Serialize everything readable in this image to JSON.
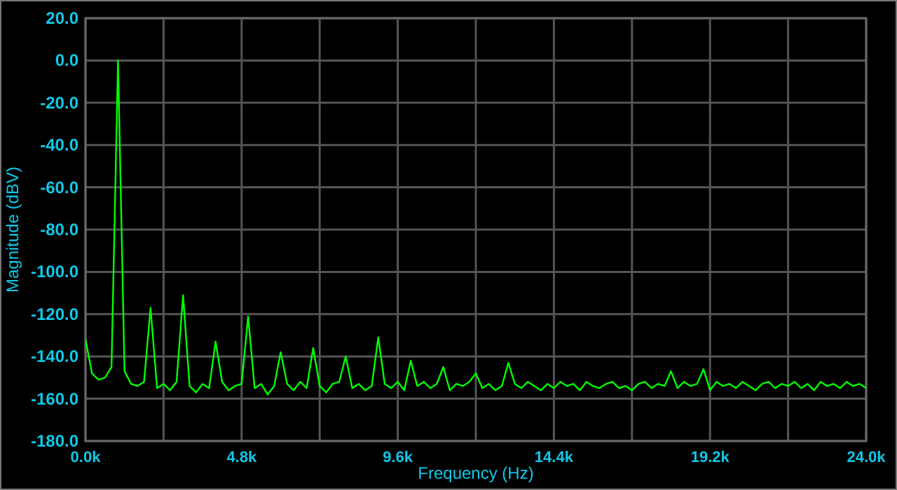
{
  "chart_data": {
    "type": "line",
    "xlabel": "Frequency (Hz)",
    "ylabel": "Magnitude (dBV)",
    "x": [
      0,
      200,
      400,
      600,
      800,
      1000,
      1200,
      1400,
      1600,
      1800,
      2000,
      2200,
      2400,
      2600,
      2800,
      3000,
      3200,
      3400,
      3600,
      3800,
      4000,
      4200,
      4400,
      4600,
      4800,
      5000,
      5200,
      5400,
      5600,
      5800,
      6000,
      6200,
      6400,
      6600,
      6800,
      7000,
      7200,
      7400,
      7600,
      7800,
      8000,
      8200,
      8400,
      8600,
      8800,
      9000,
      9200,
      9400,
      9600,
      9800,
      10000,
      10200,
      10400,
      10600,
      10800,
      11000,
      11200,
      11400,
      11600,
      11800,
      12000,
      12200,
      12400,
      12600,
      12800,
      13000,
      13200,
      13400,
      13600,
      13800,
      14000,
      14200,
      14400,
      14600,
      14800,
      15000,
      15200,
      15400,
      15600,
      15800,
      16000,
      16200,
      16400,
      16600,
      16800,
      17000,
      17200,
      17400,
      17600,
      17800,
      18000,
      18200,
      18400,
      18600,
      18800,
      19000,
      19200,
      19400,
      19600,
      19800,
      20000,
      20200,
      20400,
      20600,
      20800,
      21000,
      21200,
      21400,
      21600,
      21800,
      22000,
      22200,
      22400,
      22600,
      22800,
      23000,
      23200,
      23400,
      23600,
      23800,
      24000
    ],
    "series": [
      {
        "color": "#00ff00",
        "values": [
          -132,
          -148,
          -151,
          -150,
          -145,
          0,
          -147,
          -153,
          -154,
          -152,
          -117,
          -155,
          -153,
          -156,
          -152,
          -111,
          -154,
          -157,
          -153,
          -155,
          -133,
          -152,
          -156,
          -154,
          -153,
          -121,
          -155,
          -153,
          -158,
          -154,
          -138,
          -153,
          -156,
          -152,
          -155,
          -136,
          -154,
          -157,
          -153,
          -152,
          -140,
          -155,
          -153,
          -156,
          -154,
          -131,
          -153,
          -155,
          -152,
          -156,
          -142,
          -154,
          -152,
          -155,
          -153,
          -145,
          -156,
          -153,
          -154,
          -152,
          -148,
          -155,
          -153,
          -156,
          -154,
          -143,
          -153,
          -155,
          -152,
          -154,
          -156,
          -153,
          -155,
          -152,
          -154,
          -153,
          -156,
          -152,
          -154,
          -155,
          -153,
          -152,
          -155,
          -154,
          -156,
          -153,
          -152,
          -155,
          -153,
          -154,
          -147,
          -155,
          -152,
          -154,
          -153,
          -146,
          -156,
          -152,
          -154,
          -153,
          -155,
          -152,
          -154,
          -156,
          -153,
          -152,
          -155,
          -153,
          -154,
          -152,
          -155,
          -153,
          -156,
          -152,
          -154,
          -153,
          -155,
          -152,
          -154,
          -153,
          -155
        ]
      }
    ],
    "xlim": [
      0,
      24000
    ],
    "xticks": [
      {
        "value": 0,
        "label": "0.0k"
      },
      {
        "value": 2400,
        "label": null
      },
      {
        "value": 4800,
        "label": "4.8k"
      },
      {
        "value": 7200,
        "label": null
      },
      {
        "value": 9600,
        "label": "9.6k"
      },
      {
        "value": 12000,
        "label": null
      },
      {
        "value": 14400,
        "label": "14.4k"
      },
      {
        "value": 16800,
        "label": null
      },
      {
        "value": 19200,
        "label": "19.2k"
      },
      {
        "value": 21600,
        "label": null
      },
      {
        "value": 24000,
        "label": "24.0k"
      }
    ],
    "ylim": [
      -180,
      20
    ],
    "yticks": [
      {
        "value": -180,
        "label": "-180.0"
      },
      {
        "value": -160,
        "label": "-160.0"
      },
      {
        "value": -140,
        "label": "-140.0"
      },
      {
        "value": -120,
        "label": "-120.0"
      },
      {
        "value": -100,
        "label": "-100.0"
      },
      {
        "value": -80,
        "label": "-80.0"
      },
      {
        "value": -60,
        "label": "-60.0"
      },
      {
        "value": -40,
        "label": "-40.0"
      },
      {
        "value": -20,
        "label": "-20.0"
      },
      {
        "value": 0,
        "label": "0.0"
      },
      {
        "value": 20,
        "label": "20.0"
      }
    ],
    "grid": true,
    "marker": "none",
    "line_style": "solid"
  }
}
